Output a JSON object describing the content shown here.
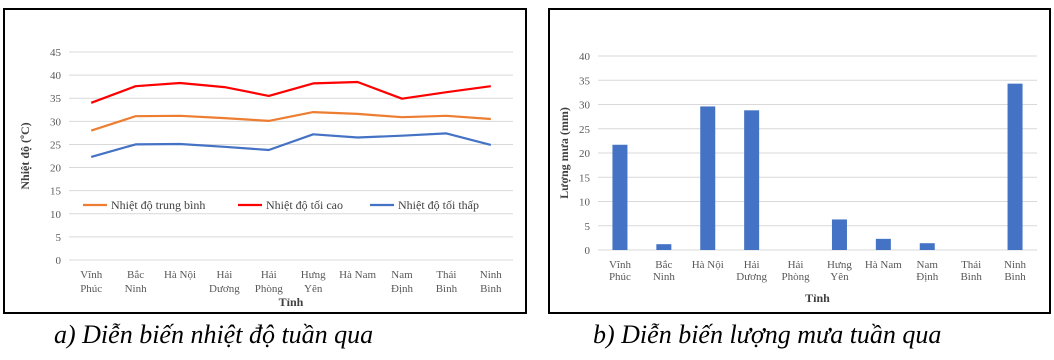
{
  "captions": {
    "a": "a) Diễn biến nhiệt độ tuần qua",
    "b": "b) Diễn biến lượng mưa tuần qua"
  },
  "chart_data": [
    {
      "type": "line",
      "categories": [
        [
          "Vĩnh",
          "Phúc"
        ],
        [
          "Bắc",
          "Ninh"
        ],
        [
          "Hà Nội"
        ],
        [
          "Hải",
          "Dương"
        ],
        [
          "Hải",
          "Phòng"
        ],
        [
          "Hưng",
          "Yên"
        ],
        [
          "Hà Nam"
        ],
        [
          "Nam",
          "Định"
        ],
        [
          "Thái",
          "Bình"
        ],
        [
          "Ninh",
          "Bình"
        ]
      ],
      "xlabel": "Tỉnh",
      "ylabel": "Nhiệt độ (ºC)",
      "ylim": [
        0,
        45
      ],
      "yticks": [
        0,
        5,
        10,
        15,
        20,
        25,
        30,
        35,
        40,
        45
      ],
      "grid": true,
      "legend": "inside-lower",
      "series": [
        {
          "name": "Nhiệt độ trung bình",
          "color": "#ED7D31",
          "values": [
            28,
            31.1,
            31.2,
            30.7,
            30.1,
            32,
            31.6,
            30.9,
            31.2,
            30.5
          ]
        },
        {
          "name": "Nhiệt độ tối cao",
          "color": "#FF0000",
          "values": [
            34,
            37.6,
            38.3,
            37.4,
            35.5,
            38.2,
            38.5,
            34.9,
            36.3,
            37.6
          ]
        },
        {
          "name": "Nhiệt độ tối thấp",
          "color": "#4472C4",
          "values": [
            22.3,
            25,
            25.1,
            24.5,
            23.8,
            27.2,
            26.5,
            26.9,
            27.4,
            24.9
          ]
        }
      ]
    },
    {
      "type": "bar",
      "categories": [
        [
          "Vĩnh",
          "Phúc"
        ],
        [
          "Bắc",
          "Ninh"
        ],
        [
          "Hà Nội"
        ],
        [
          "Hải",
          "Dương"
        ],
        [
          "Hải",
          "Phòng"
        ],
        [
          "Hưng",
          "Yên"
        ],
        [
          "Hà Nam"
        ],
        [
          "Nam",
          "Định"
        ],
        [
          "Thái",
          "Bình"
        ],
        [
          "Ninh",
          "Bình"
        ]
      ],
      "xlabel": "Tỉnh",
      "ylabel": "Lượng mưa (mm)",
      "ylim": [
        0,
        40
      ],
      "yticks": [
        0,
        5,
        10,
        15,
        20,
        25,
        30,
        35,
        40
      ],
      "grid": true,
      "color": "#4472C4",
      "values": [
        21.7,
        1.2,
        29.6,
        28.8,
        0,
        6.3,
        2.3,
        1.4,
        0,
        34.3
      ]
    }
  ]
}
